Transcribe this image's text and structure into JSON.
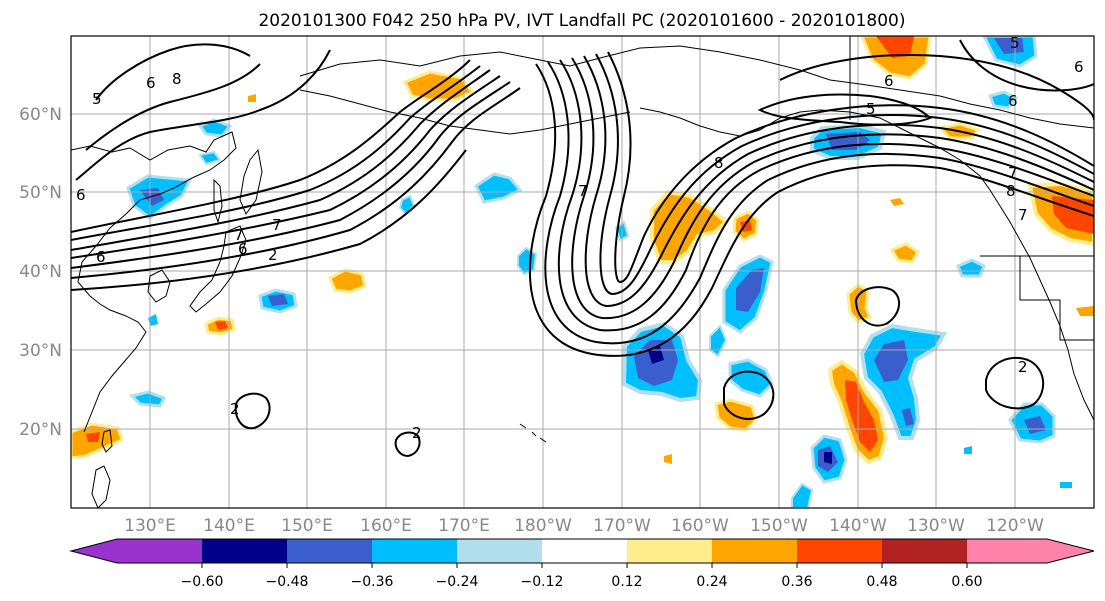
{
  "title": "2020101300 F042 250 hPa PV, IVT Landfall PC (2020101600 - 2020101800)",
  "map": {
    "lat_labels": [
      "60°N",
      "50°N",
      "40°N",
      "30°N",
      "20°N"
    ],
    "lon_labels": [
      "130°E",
      "140°E",
      "150°E",
      "160°E",
      "170°E",
      "180°W",
      "170°W",
      "160°W",
      "150°W",
      "140°W",
      "130°W",
      "120°W"
    ],
    "contour_labels": [
      "5",
      "6",
      "8",
      "6",
      "6",
      "7",
      "7",
      "6",
      "2",
      "7",
      "8",
      "6",
      "5",
      "6",
      "5",
      "6",
      "8",
      "7",
      "7",
      "2",
      "2",
      "2"
    ],
    "colors": {
      "grid": "#aaaaaa",
      "coast": "#000000",
      "contour": "#000000",
      "axis_label": "#888888"
    }
  },
  "colorbar": {
    "ticks": [
      "−0.60",
      "−0.48",
      "−0.36",
      "−0.24",
      "−0.12",
      "0.12",
      "0.24",
      "0.36",
      "0.48",
      "0.60"
    ],
    "colors": [
      "#9a32cd",
      "#00008b",
      "#3a5fcd",
      "#00bfff",
      "#b2dfee",
      "#ffffff",
      "#ffec8b",
      "#ffa500",
      "#ff4500",
      "#b22222",
      "#ff82ab"
    ]
  }
}
